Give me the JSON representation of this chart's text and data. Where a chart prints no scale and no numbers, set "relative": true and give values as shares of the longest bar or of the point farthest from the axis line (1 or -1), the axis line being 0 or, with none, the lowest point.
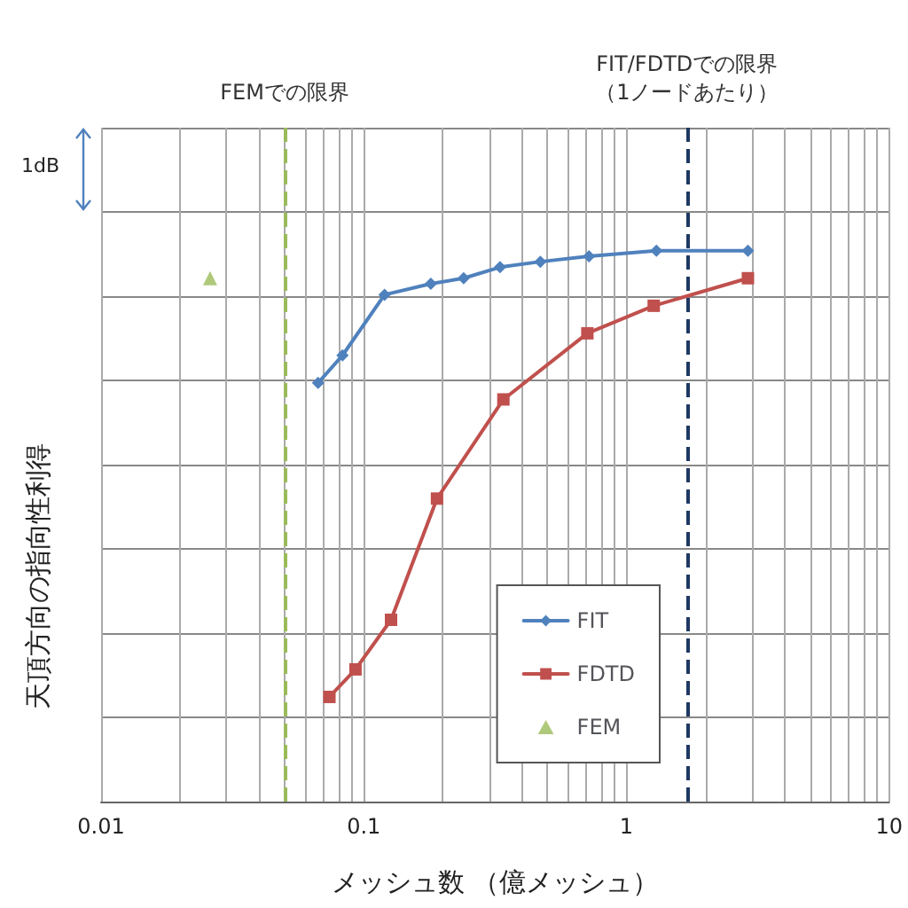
{
  "chart_data": {
    "type": "line",
    "xlabel": "メッシュ数 （億メッシュ）",
    "ylabel": "天頂方向の指向性利得",
    "relative": true,
    "log": "x",
    "xlim": [
      0.01,
      10
    ],
    "xticks": [
      0.01,
      {
        "value": 0.02,
        "label": null
      },
      {
        "value": 0.03,
        "label": null
      },
      {
        "value": 0.04,
        "label": null
      },
      {
        "value": 0.05,
        "label": null
      },
      {
        "value": 0.06,
        "label": null
      },
      {
        "value": 0.07,
        "label": null
      },
      {
        "value": 0.08,
        "label": null
      },
      {
        "value": 0.09,
        "label": null
      },
      0.1,
      {
        "value": 0.2,
        "label": null
      },
      {
        "value": 0.3,
        "label": null
      },
      {
        "value": 0.4,
        "label": null
      },
      {
        "value": 0.5,
        "label": null
      },
      {
        "value": 0.6,
        "label": null
      },
      {
        "value": 0.7,
        "label": null
      },
      {
        "value": 0.8,
        "label": null
      },
      {
        "value": 0.9,
        "label": null
      },
      1,
      {
        "value": 2,
        "label": null
      },
      {
        "value": 3,
        "label": null
      },
      {
        "value": 4,
        "label": null
      },
      {
        "value": 5,
        "label": null
      },
      {
        "value": 6,
        "label": null
      },
      {
        "value": 7,
        "label": null
      },
      {
        "value": 8,
        "label": null
      },
      {
        "value": 9,
        "label": null
      },
      10
    ],
    "grid": true,
    "legend": "bottom right",
    "line_style": "solid",
    "annotations": [
      "1dB"
    ],
    "ref_lines": [
      {
        "axis": "x",
        "value": 0.05,
        "label": "FEMでの限界",
        "color": "#9bbb59",
        "line_style": "dashed"
      },
      {
        "axis": "x",
        "value": 1.7,
        "label": "FIT/FDTDでの限界（1ノードあたり）",
        "color": "#1f3864",
        "line_style": "dashed"
      }
    ],
    "series": [
      {
        "name": "FIT",
        "color": "#4f81bd",
        "marker": "diamond",
        "x": [
          0.067,
          0.083,
          0.12,
          0.18,
          0.24,
          0.33,
          0.47,
          0.72,
          1.3,
          2.9
        ],
        "values": [
          0.76,
          0.81,
          0.92,
          0.94,
          0.95,
          0.97,
          0.98,
          0.99,
          1.0,
          1.0
        ]
      },
      {
        "name": "FDTD",
        "color": "#c0504d",
        "marker": "square",
        "x": [
          0.074,
          0.093,
          0.127,
          0.19,
          0.34,
          0.71,
          1.27,
          2.9
        ],
        "values": [
          0.19,
          0.24,
          0.33,
          0.55,
          0.73,
          0.85,
          0.9,
          0.95
        ]
      },
      {
        "name": "FEM",
        "type": "scatter",
        "color": "#9bbb59",
        "marker": "triangle",
        "x": [
          0.026
        ],
        "values": [
          0.95
        ]
      }
    ]
  }
}
